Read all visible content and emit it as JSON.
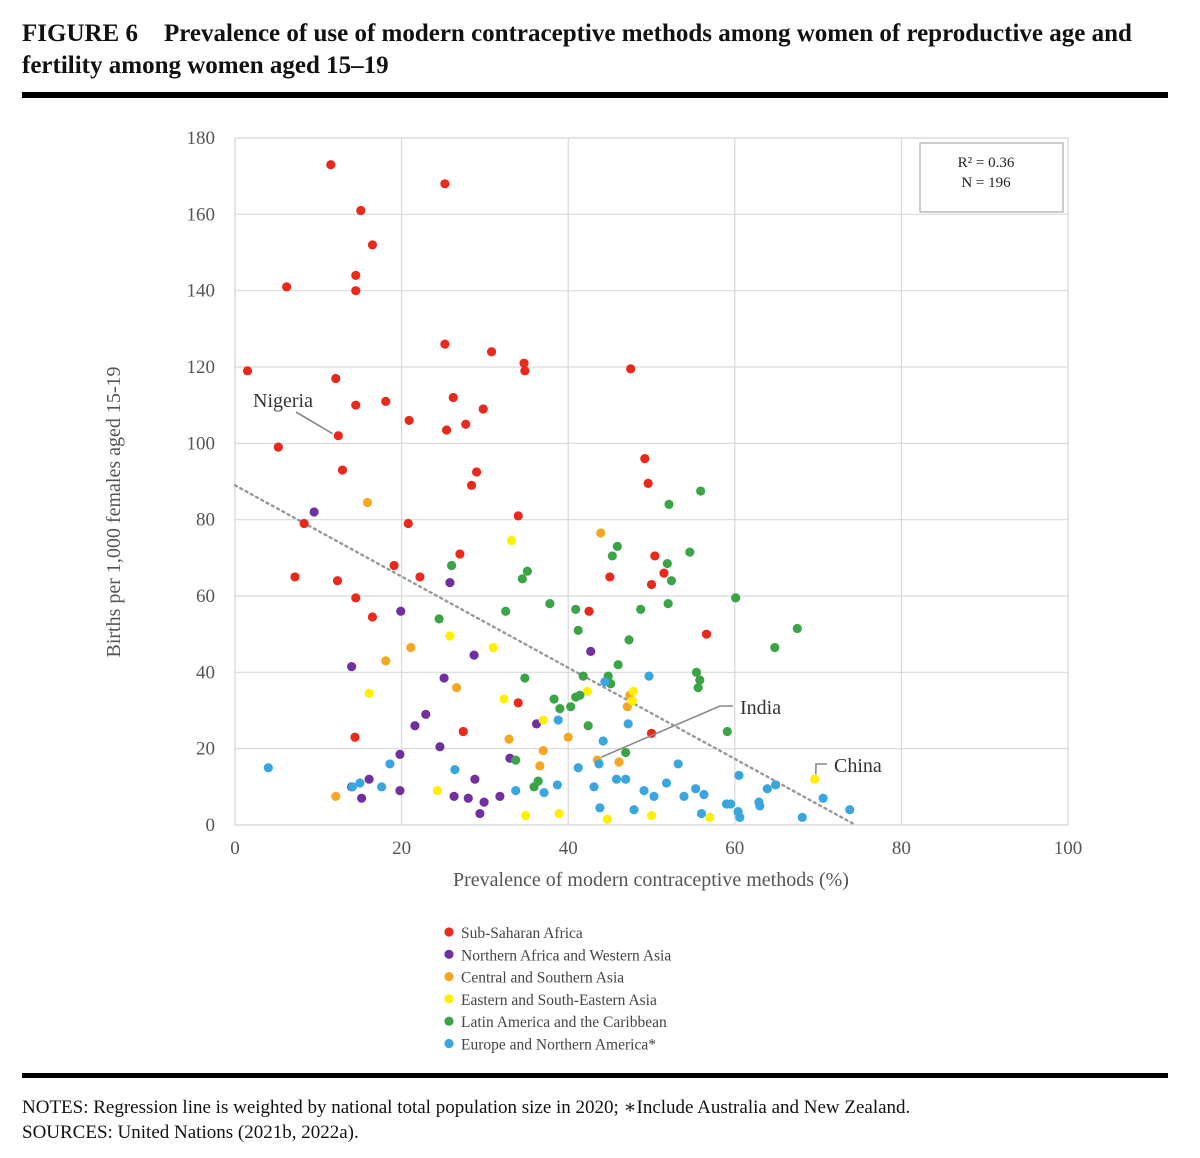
{
  "figure": {
    "number": "FIGURE 6",
    "title": "Prevalence of use of modern contraceptive methods among women of reproductive age and fertility among women aged 15–19"
  },
  "notes": {
    "line1": "NOTES: Regression line is weighted by national total population size in 2020; ∗Include Australia and New Zealand.",
    "line2": "SOURCES: United Nations (2021b, 2022a)."
  },
  "chart_data": {
    "type": "scatter",
    "xlabel": "Prevalence of modern contraceptive methods (%)",
    "ylabel": "Births per 1,000 females aged 15-19",
    "xlim": [
      0,
      100
    ],
    "ylim": [
      0,
      180
    ],
    "xticks": [
      0,
      20,
      40,
      60,
      80,
      100
    ],
    "yticks": [
      0,
      20,
      40,
      60,
      80,
      100,
      120,
      140,
      160,
      180
    ],
    "grid": true,
    "legend_position": "bottom",
    "stats": {
      "r2": "R² = 0.36",
      "n": "N = 196"
    },
    "regression": {
      "x": [
        0,
        74.5
      ],
      "y": [
        89,
        0
      ],
      "style": "dotted",
      "color": "#999999"
    },
    "annotations": [
      {
        "text": "Nigeria",
        "point": [
          12.2,
          102
        ]
      },
      {
        "text": "India",
        "point": [
          43.5,
          17
        ]
      },
      {
        "text": "China",
        "point": [
          69.6,
          12
        ]
      }
    ],
    "series": [
      {
        "name": "Sub-Saharan Africa",
        "color": "#e8291c",
        "points": [
          [
            11.5,
            173
          ],
          [
            25.2,
            168
          ],
          [
            15.1,
            161
          ],
          [
            16.5,
            152
          ],
          [
            14.5,
            144
          ],
          [
            14.5,
            140
          ],
          [
            6.2,
            141
          ],
          [
            1.5,
            119
          ],
          [
            12.1,
            117
          ],
          [
            14.5,
            110
          ],
          [
            18.1,
            111
          ],
          [
            25.2,
            126
          ],
          [
            30.8,
            124
          ],
          [
            34.7,
            121
          ],
          [
            34.8,
            119
          ],
          [
            47.5,
            119.5
          ],
          [
            26.2,
            112
          ],
          [
            29.8,
            109
          ],
          [
            20.9,
            106
          ],
          [
            27.7,
            105
          ],
          [
            25.4,
            103.5
          ],
          [
            12.4,
            102
          ],
          [
            5.2,
            99
          ],
          [
            49.2,
            96
          ],
          [
            29.0,
            92.5
          ],
          [
            12.9,
            93
          ],
          [
            28.4,
            89
          ],
          [
            49.6,
            89.5
          ],
          [
            8.3,
            79
          ],
          [
            20.8,
            79
          ],
          [
            34.0,
            81
          ],
          [
            27.0,
            71
          ],
          [
            19.1,
            68
          ],
          [
            7.2,
            65
          ],
          [
            12.3,
            64
          ],
          [
            22.2,
            65
          ],
          [
            45.0,
            65
          ],
          [
            50.4,
            70.5
          ],
          [
            51.5,
            66
          ],
          [
            50.0,
            63
          ],
          [
            14.5,
            59.5
          ],
          [
            16.5,
            54.5
          ],
          [
            42.5,
            56
          ],
          [
            56.6,
            50
          ],
          [
            34.0,
            32
          ],
          [
            27.4,
            24.5
          ],
          [
            14.4,
            23
          ],
          [
            50.0,
            24
          ]
        ]
      },
      {
        "name": "Northern Africa and Western Asia",
        "color": "#7030a0",
        "points": [
          [
            9.5,
            82
          ],
          [
            25.8,
            63.5
          ],
          [
            19.9,
            56
          ],
          [
            28.7,
            44.5
          ],
          [
            42.7,
            45.5
          ],
          [
            14.0,
            41.5
          ],
          [
            25.1,
            38.5
          ],
          [
            22.9,
            29
          ],
          [
            21.6,
            26
          ],
          [
            36.2,
            26.5
          ],
          [
            24.6,
            20.5
          ],
          [
            19.8,
            18.5
          ],
          [
            33.0,
            17.5
          ],
          [
            16.1,
            12
          ],
          [
            14.0,
            10
          ],
          [
            15.2,
            7
          ],
          [
            19.8,
            9
          ],
          [
            26.3,
            7.5
          ],
          [
            28.0,
            7
          ],
          [
            28.8,
            12
          ],
          [
            29.4,
            3
          ],
          [
            29.9,
            6
          ],
          [
            31.8,
            7.5
          ]
        ]
      },
      {
        "name": "Central and Southern Asia",
        "color": "#f5a623",
        "points": [
          [
            15.9,
            84.5
          ],
          [
            43.9,
            76.5
          ],
          [
            21.1,
            46.5
          ],
          [
            18.1,
            43
          ],
          [
            26.6,
            36
          ],
          [
            47.4,
            34
          ],
          [
            47.1,
            31
          ],
          [
            32.9,
            22.5
          ],
          [
            40.0,
            23
          ],
          [
            37.0,
            19.5
          ],
          [
            43.5,
            17
          ],
          [
            46.1,
            16.5
          ],
          [
            36.6,
            15.5
          ],
          [
            12.1,
            7.5
          ]
        ]
      },
      {
        "name": "Eastern and South-Eastern Asia",
        "color": "#ffef00",
        "points": [
          [
            33.2,
            74.5
          ],
          [
            25.8,
            49.5
          ],
          [
            31.0,
            46.5
          ],
          [
            16.1,
            34.5
          ],
          [
            42.3,
            35
          ],
          [
            47.8,
            35
          ],
          [
            47.7,
            32.5
          ],
          [
            32.3,
            33
          ],
          [
            37.0,
            27.5
          ],
          [
            24.3,
            9
          ],
          [
            34.9,
            2.5
          ],
          [
            38.9,
            3
          ],
          [
            44.7,
            1.5
          ],
          [
            50.0,
            2.5
          ],
          [
            57.0,
            2
          ],
          [
            69.6,
            12
          ]
        ]
      },
      {
        "name": "Latin America and the Caribbean",
        "color": "#3aa447",
        "points": [
          [
            52.1,
            84
          ],
          [
            55.9,
            87.5
          ],
          [
            26.0,
            68
          ],
          [
            35.1,
            66.5
          ],
          [
            34.5,
            64.5
          ],
          [
            45.3,
            70.5
          ],
          [
            45.9,
            73
          ],
          [
            51.9,
            68.5
          ],
          [
            52.4,
            64
          ],
          [
            54.6,
            71.5
          ],
          [
            40.9,
            56.5
          ],
          [
            32.5,
            56
          ],
          [
            48.7,
            56.5
          ],
          [
            52.0,
            58
          ],
          [
            37.8,
            58
          ],
          [
            41.2,
            51
          ],
          [
            24.5,
            54
          ],
          [
            47.3,
            48.5
          ],
          [
            60.1,
            59.5
          ],
          [
            67.5,
            51.5
          ],
          [
            64.8,
            46.5
          ],
          [
            46.0,
            42
          ],
          [
            55.4,
            40
          ],
          [
            55.8,
            38
          ],
          [
            55.6,
            36
          ],
          [
            44.8,
            39
          ],
          [
            45.1,
            37
          ],
          [
            41.8,
            39
          ],
          [
            34.8,
            38.5
          ],
          [
            38.3,
            33
          ],
          [
            39.0,
            30.5
          ],
          [
            40.3,
            31
          ],
          [
            40.9,
            33.5
          ],
          [
            41.4,
            34
          ],
          [
            42.4,
            26
          ],
          [
            33.7,
            17
          ],
          [
            36.4,
            11.5
          ],
          [
            35.9,
            10
          ],
          [
            46.9,
            19
          ],
          [
            59.1,
            24.5
          ]
        ]
      },
      {
        "name": "Europe and Northern America*",
        "color": "#3aa6e0",
        "points": [
          [
            4.0,
            15
          ],
          [
            14.1,
            10
          ],
          [
            15.0,
            11
          ],
          [
            17.6,
            10
          ],
          [
            18.6,
            16
          ],
          [
            26.4,
            14.5
          ],
          [
            33.7,
            9
          ],
          [
            37.1,
            8.5
          ],
          [
            38.7,
            10.5
          ],
          [
            38.8,
            27.5
          ],
          [
            41.2,
            15
          ],
          [
            43.1,
            10
          ],
          [
            43.7,
            16
          ],
          [
            44.4,
            37.5
          ],
          [
            44.2,
            22
          ],
          [
            43.8,
            4.5
          ],
          [
            45.8,
            12
          ],
          [
            46.9,
            12
          ],
          [
            47.2,
            26.5
          ],
          [
            47.9,
            4
          ],
          [
            49.1,
            9
          ],
          [
            49.7,
            39
          ],
          [
            50.3,
            7.5
          ],
          [
            51.8,
            11
          ],
          [
            53.2,
            16
          ],
          [
            53.9,
            7.5
          ],
          [
            55.3,
            9.5
          ],
          [
            56.0,
            3
          ],
          [
            56.3,
            8
          ],
          [
            59.0,
            5.5
          ],
          [
            59.5,
            5.5
          ],
          [
            60.5,
            13
          ],
          [
            60.4,
            3.5
          ],
          [
            60.6,
            2
          ],
          [
            62.9,
            6
          ],
          [
            63.0,
            5
          ],
          [
            63.9,
            9.5
          ],
          [
            64.9,
            10.5
          ],
          [
            70.6,
            7
          ],
          [
            68.1,
            2
          ],
          [
            73.8,
            4
          ]
        ]
      }
    ]
  }
}
